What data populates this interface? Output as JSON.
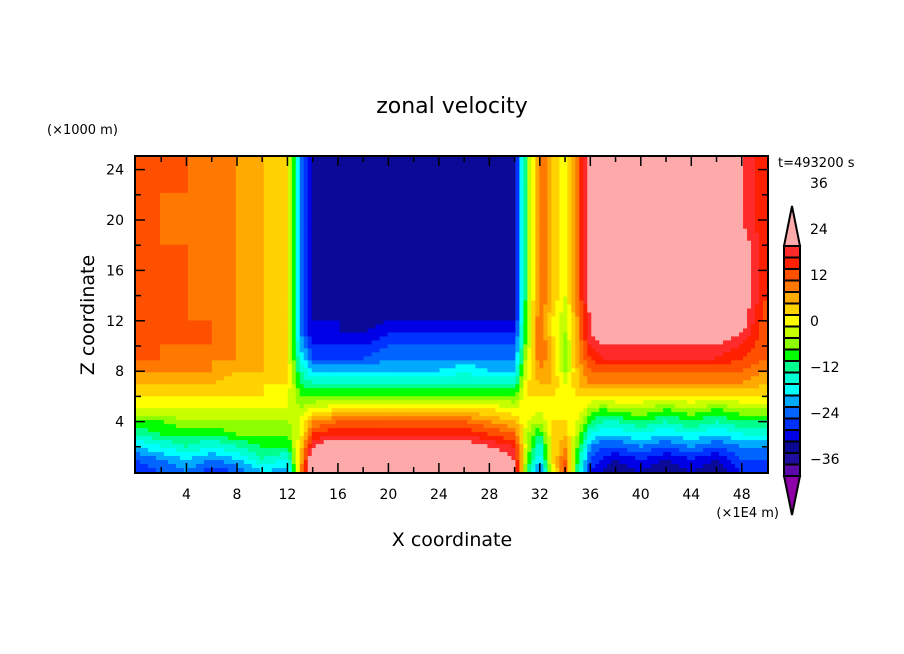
{
  "chart_data": {
    "type": "heatmap",
    "title": "zonal velocity",
    "xlabel": "X coordinate",
    "ylabel": "Z coordinate",
    "x_units": "(×1E4 m)",
    "y_units": "(×1000 m)",
    "time_label": "t=493200 s",
    "xlim": [
      0,
      50
    ],
    "ylim": [
      0,
      25
    ],
    "x_ticks": [
      4,
      8,
      12,
      16,
      20,
      24,
      28,
      32,
      36,
      40,
      44,
      48
    ],
    "x_tick_labels": [
      "4",
      "8",
      "12",
      "16",
      "20",
      "24",
      "28",
      "32",
      "36",
      "40",
      "44",
      "48"
    ],
    "y_ticks": [
      4,
      8,
      12,
      16,
      20,
      24
    ],
    "y_tick_labels": [
      "4",
      "8",
      "12",
      "16",
      "20",
      "24"
    ],
    "colorbar": {
      "levels": [
        -42,
        -39,
        -36,
        -33,
        -30,
        -27,
        -24,
        -21,
        -18,
        -15,
        -12,
        -9,
        -6,
        -3,
        0,
        3,
        6,
        9,
        12,
        15,
        18,
        21,
        24,
        27,
        30,
        33,
        36,
        39,
        42
      ],
      "tick_labels": [
        "36",
        "24",
        "12",
        "0",
        "−12",
        "−24",
        "−36"
      ],
      "tick_values": [
        36,
        24,
        12,
        0,
        -12,
        -24,
        -36
      ],
      "colors_low_to_high": [
        "#8e00a8",
        "#5a0aa8",
        "#1e0f9e",
        "#0a0a96",
        "#0000e6",
        "#0032ff",
        "#0064ff",
        "#00aaff",
        "#00ffff",
        "#00ffd2",
        "#00ff8c",
        "#00ff00",
        "#8cff00",
        "#c8ff00",
        "#ffff00",
        "#ffd200",
        "#ffaa00",
        "#ff7800",
        "#ff5000",
        "#ff2000",
        "#ff2a2a",
        "#ffaaaa"
      ],
      "over_color": "#ffaaaa",
      "under_color": "#8e00a8"
    },
    "x_grid": [
      0,
      2,
      4,
      6,
      8,
      10,
      12,
      13,
      14,
      16,
      18,
      20,
      22,
      24,
      26,
      28,
      30,
      31,
      32,
      33,
      34,
      35,
      36,
      37,
      38,
      40,
      42,
      44,
      46,
      48,
      50
    ],
    "z_grid": [
      0,
      1,
      2,
      3,
      4,
      5,
      6,
      7,
      8,
      9,
      10,
      11,
      12,
      14,
      16,
      18,
      20,
      22,
      25
    ],
    "values_rows_by_z": [
      [
        -27,
        -24,
        -21,
        -27,
        -24,
        -18,
        -21,
        6,
        30,
        36,
        33,
        33,
        33,
        33,
        33,
        30,
        24,
        -9,
        -24,
        0,
        15,
        -12,
        -27,
        -30,
        -33,
        -30,
        -33,
        -30,
        -33,
        -27,
        -27
      ],
      [
        -24,
        -21,
        -18,
        -21,
        -18,
        -12,
        -15,
        6,
        27,
        33,
        30,
        30,
        30,
        30,
        30,
        27,
        21,
        -6,
        -18,
        3,
        12,
        -9,
        -24,
        -27,
        -30,
        -27,
        -30,
        -27,
        -30,
        -24,
        -24
      ],
      [
        -18,
        -15,
        -12,
        -15,
        -12,
        -9,
        -9,
        3,
        21,
        27,
        24,
        24,
        24,
        24,
        24,
        21,
        18,
        -3,
        -15,
        3,
        9,
        -6,
        -21,
        -24,
        -24,
        -21,
        -24,
        -21,
        -24,
        -21,
        -21
      ],
      [
        -12,
        -9,
        -9,
        -9,
        -6,
        -6,
        -6,
        0,
        15,
        18,
        18,
        18,
        18,
        18,
        18,
        15,
        12,
        -3,
        -9,
        3,
        6,
        -3,
        -15,
        -18,
        -18,
        -15,
        -18,
        -15,
        -18,
        -15,
        -15
      ],
      [
        -6,
        -6,
        -3,
        -3,
        -3,
        -3,
        -3,
        0,
        9,
        12,
        12,
        12,
        12,
        12,
        12,
        9,
        6,
        0,
        -3,
        3,
        3,
        0,
        -9,
        -12,
        -12,
        -9,
        -12,
        -9,
        -12,
        -9,
        -9
      ],
      [
        0,
        0,
        0,
        0,
        0,
        0,
        0,
        -3,
        0,
        3,
        3,
        3,
        3,
        3,
        3,
        3,
        0,
        3,
        0,
        3,
        0,
        3,
        -3,
        -6,
        -3,
        -3,
        -6,
        -3,
        -6,
        -3,
        -3
      ],
      [
        3,
        3,
        3,
        3,
        3,
        3,
        0,
        -6,
        -6,
        -6,
        -6,
        -6,
        -6,
        -6,
        -6,
        -6,
        -6,
        3,
        3,
        3,
        0,
        3,
        3,
        3,
        3,
        3,
        3,
        3,
        3,
        3,
        3
      ],
      [
        6,
        6,
        6,
        6,
        3,
        3,
        3,
        -9,
        -12,
        -12,
        -12,
        -12,
        -12,
        -12,
        -12,
        -12,
        -12,
        3,
        6,
        6,
        0,
        6,
        9,
        9,
        9,
        9,
        9,
        9,
        9,
        9,
        6
      ],
      [
        9,
        9,
        9,
        9,
        6,
        6,
        3,
        -12,
        -18,
        -18,
        -18,
        -18,
        -18,
        -18,
        -15,
        -18,
        -18,
        0,
        9,
        6,
        -3,
        6,
        12,
        12,
        12,
        12,
        12,
        12,
        12,
        12,
        9
      ],
      [
        12,
        12,
        9,
        9,
        9,
        6,
        3,
        -15,
        -24,
        -24,
        -24,
        -21,
        -21,
        -21,
        -21,
        -21,
        -21,
        0,
        12,
        6,
        -6,
        9,
        15,
        18,
        18,
        18,
        18,
        18,
        18,
        15,
        12
      ],
      [
        12,
        12,
        12,
        12,
        9,
        6,
        3,
        -18,
        -27,
        -27,
        -27,
        -24,
        -24,
        -24,
        -24,
        -24,
        -24,
        -3,
        12,
        6,
        -6,
        9,
        18,
        21,
        21,
        21,
        21,
        21,
        21,
        18,
        12
      ],
      [
        15,
        15,
        12,
        12,
        9,
        6,
        3,
        -21,
        -30,
        -30,
        -30,
        -27,
        -27,
        -27,
        -27,
        -27,
        -27,
        -3,
        12,
        3,
        -3,
        9,
        21,
        24,
        24,
        24,
        24,
        24,
        24,
        21,
        12
      ],
      [
        15,
        12,
        12,
        12,
        9,
        6,
        3,
        -21,
        -30,
        -30,
        -33,
        -30,
        -30,
        -30,
        -30,
        -30,
        -30,
        -3,
        12,
        3,
        -3,
        9,
        21,
        27,
        27,
        27,
        27,
        27,
        27,
        24,
        12
      ],
      [
        12,
        12,
        12,
        9,
        9,
        6,
        3,
        -21,
        -30,
        -33,
        -33,
        -33,
        -33,
        -33,
        -33,
        -33,
        -30,
        -6,
        12,
        6,
        0,
        12,
        24,
        27,
        27,
        27,
        27,
        27,
        27,
        24,
        15
      ],
      [
        12,
        12,
        12,
        9,
        9,
        6,
        3,
        -21,
        -30,
        -33,
        -33,
        -33,
        -33,
        -33,
        -33,
        -33,
        -30,
        -6,
        12,
        6,
        0,
        12,
        24,
        27,
        27,
        27,
        27,
        27,
        27,
        24,
        15
      ],
      [
        12,
        12,
        12,
        9,
        9,
        6,
        3,
        -21,
        -30,
        -33,
        -33,
        -33,
        -33,
        -33,
        -33,
        -33,
        -30,
        -6,
        12,
        6,
        0,
        12,
        24,
        27,
        27,
        27,
        27,
        27,
        27,
        24,
        15
      ],
      [
        12,
        12,
        9,
        9,
        9,
        6,
        3,
        -21,
        -30,
        -33,
        -33,
        -33,
        -33,
        -33,
        -33,
        -33,
        -30,
        -6,
        12,
        6,
        0,
        12,
        24,
        27,
        27,
        27,
        27,
        27,
        24,
        21,
        15
      ],
      [
        15,
        12,
        12,
        9,
        9,
        6,
        3,
        -21,
        -30,
        -33,
        -33,
        -33,
        -33,
        -33,
        -33,
        -33,
        -30,
        -6,
        12,
        6,
        0,
        12,
        24,
        27,
        27,
        27,
        27,
        27,
        24,
        21,
        15
      ],
      [
        15,
        12,
        12,
        9,
        9,
        6,
        3,
        -21,
        -30,
        -33,
        -33,
        -33,
        -33,
        -33,
        -33,
        -33,
        -30,
        -6,
        12,
        6,
        0,
        12,
        24,
        27,
        27,
        27,
        27,
        27,
        24,
        21,
        15
      ]
    ]
  }
}
